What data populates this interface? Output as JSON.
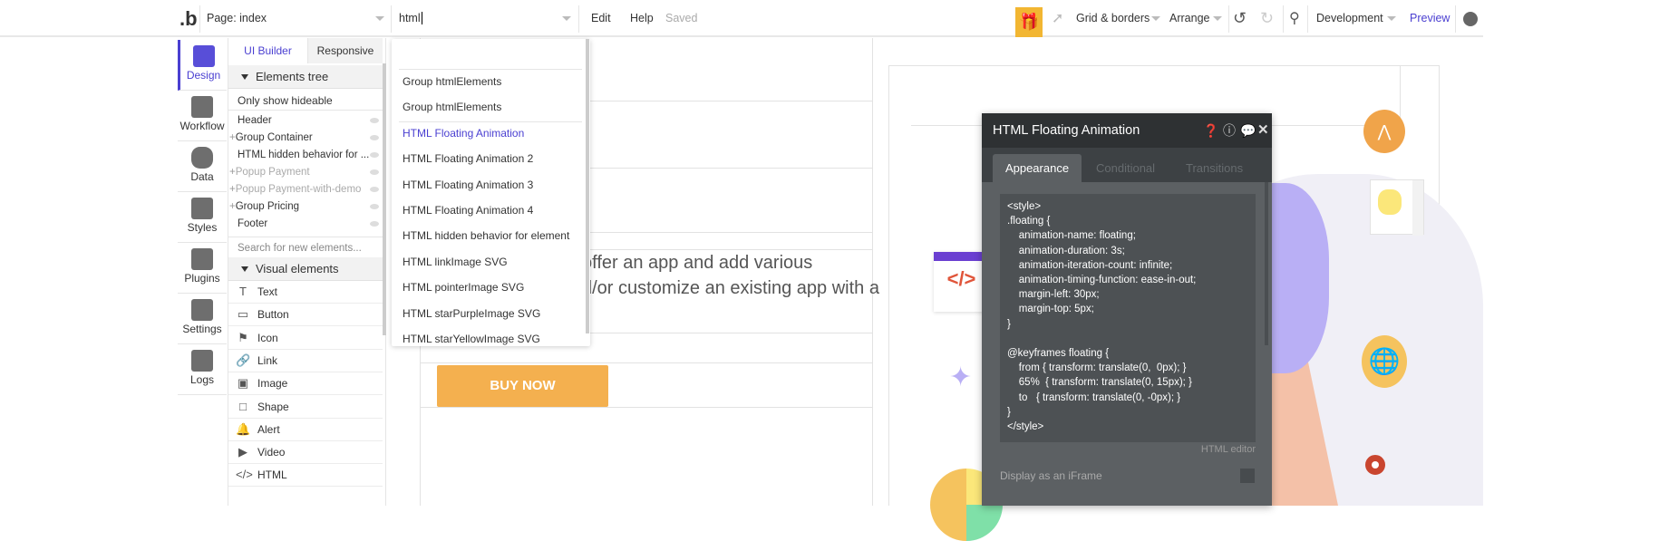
{
  "topbar": {
    "page_label": "Page: index",
    "search_value": "html",
    "edit": "Edit",
    "help": "Help",
    "saved": "Saved",
    "grid": "Grid & borders",
    "arrange": "Arrange",
    "environment": "Development",
    "preview": "Preview"
  },
  "sidebar": {
    "items": [
      {
        "label": "Design",
        "icon": "design-icon"
      },
      {
        "label": "Workflow",
        "icon": "workflow-icon"
      },
      {
        "label": "Data",
        "icon": "database-icon"
      },
      {
        "label": "Styles",
        "icon": "brush-icon"
      },
      {
        "label": "Plugins",
        "icon": "plug-icon"
      },
      {
        "label": "Settings",
        "icon": "gear-icon"
      },
      {
        "label": "Logs",
        "icon": "document-icon"
      }
    ]
  },
  "panel": {
    "tabs": [
      "UI Builder",
      "Responsive"
    ],
    "elements_tree": "Elements tree",
    "only_hideable": "Only show hideable",
    "tree": [
      {
        "label": "Header",
        "plus": false,
        "dim": false
      },
      {
        "label": "Group Container",
        "plus": true,
        "dim": false
      },
      {
        "label": "HTML hidden behavior for ...",
        "plus": false,
        "dim": false
      },
      {
        "label": "Popup Payment",
        "plus": true,
        "dim": true
      },
      {
        "label": "Popup Payment-with-demo",
        "plus": true,
        "dim": true
      },
      {
        "label": "Group Pricing",
        "plus": true,
        "dim": false
      },
      {
        "label": "Footer",
        "plus": false,
        "dim": false
      }
    ],
    "search_placeholder": "Search for new elements...",
    "visual_elements": "Visual elements",
    "visual": [
      {
        "label": "Text",
        "icon": "T"
      },
      {
        "label": "Button",
        "icon": "▭"
      },
      {
        "label": "Icon",
        "icon": "⚑"
      },
      {
        "label": "Link",
        "icon": "🔗"
      },
      {
        "label": "Image",
        "icon": "▣"
      },
      {
        "label": "Shape",
        "icon": "□"
      },
      {
        "label": "Alert",
        "icon": "🔔"
      },
      {
        "label": "Video",
        "icon": "▶"
      },
      {
        "label": "HTML",
        "icon": "</>"
      }
    ]
  },
  "dropdown": {
    "items": [
      "Group htmlElements",
      "Group htmlElements",
      "HTML Floating Animation",
      "HTML Floating Animation 2",
      "HTML Floating Animation 3",
      "HTML Floating Animation 4",
      "HTML hidden behavior for element",
      "HTML linkImage SVG",
      "HTML pointerImage SVG",
      "HTML starPurpleImage SVG",
      "HTML starYellowImage SVG"
    ],
    "selected_index": 2,
    "accent": "#4a3fd1"
  },
  "canvas": {
    "text_line1": "offer an app and add various",
    "text_line2": "d/or customize an existing app with a",
    "buy_button": "BUY NOW",
    "buy_color": "#f4b04f"
  },
  "popup": {
    "title": "HTML Floating Animation",
    "tabs": [
      "Appearance",
      "Conditional",
      "Transitions"
    ],
    "code": "<style>\n.floating {\n    animation-name: floating;\n    animation-duration: 3s;\n    animation-iteration-count: infinite;\n    animation-timing-function: ease-in-out;\n    margin-left: 30px;\n    margin-top: 5px;\n}\n\n@keyframes floating {\n    from { transform: translate(0,  0px); }\n    65%  { transform: translate(0, 15px); }\n    to   { transform: translate(0, -0px); }\n}\n</style>",
    "editor_label": "HTML editor",
    "iframe_label": "Display as an iFrame"
  }
}
